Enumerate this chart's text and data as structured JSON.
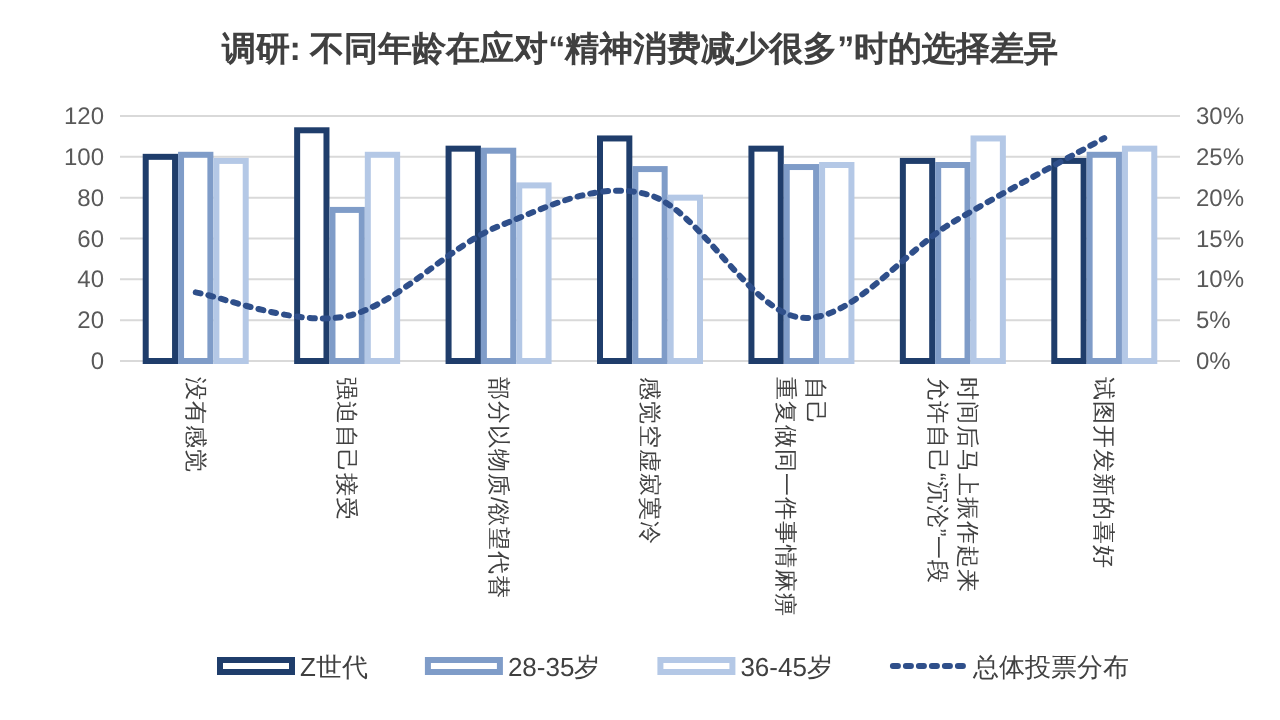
{
  "chart_data": {
    "type": "bar",
    "title": "调研: 不同年龄在应对“精神消费减少很多”时的选择差异",
    "categories": [
      "没有感觉",
      "强迫自己接受",
      "部分以物质/欲望代替",
      "感觉空虚寂寞冷",
      "重复做同一件事情麻痹自己",
      "允许自己“沉沦”一段时间后马上振作起来",
      "试图开发新的喜好"
    ],
    "series": [
      {
        "name": "Z世代",
        "color": "#1f3d6b",
        "values": [
          100,
          113,
          104,
          109,
          104,
          98,
          98
        ]
      },
      {
        "name": "28-35岁",
        "color": "#7f9cc8",
        "values": [
          101,
          74,
          103,
          94,
          95,
          96,
          101
        ]
      },
      {
        "name": "36-45岁",
        "color": "#b4c8e6",
        "values": [
          98,
          101,
          86,
          80,
          96,
          109,
          104
        ]
      },
      {
        "name": "总体投票分布",
        "type": "line",
        "axis": "y2",
        "line_style": "dotted",
        "color": "#2f4f8a",
        "values": [
          8.4,
          5.5,
          16.5,
          20.3,
          5.3,
          17,
          27.3
        ]
      }
    ],
    "ylim": [
      0,
      120
    ],
    "yticks": [
      0,
      20,
      40,
      60,
      80,
      100,
      120
    ],
    "y2lim": [
      0,
      30
    ],
    "y2ticks": [
      {
        "value": 0,
        "label": "0%"
      },
      {
        "value": 5,
        "label": "5%"
      },
      {
        "value": 10,
        "label": "10%"
      },
      {
        "value": 15,
        "label": "15%"
      },
      {
        "value": 20,
        "label": "20%"
      },
      {
        "value": 25,
        "label": "25%"
      },
      {
        "value": 30,
        "label": "30%"
      }
    ],
    "grid": "y",
    "legend": "bottom",
    "marker": "none"
  }
}
